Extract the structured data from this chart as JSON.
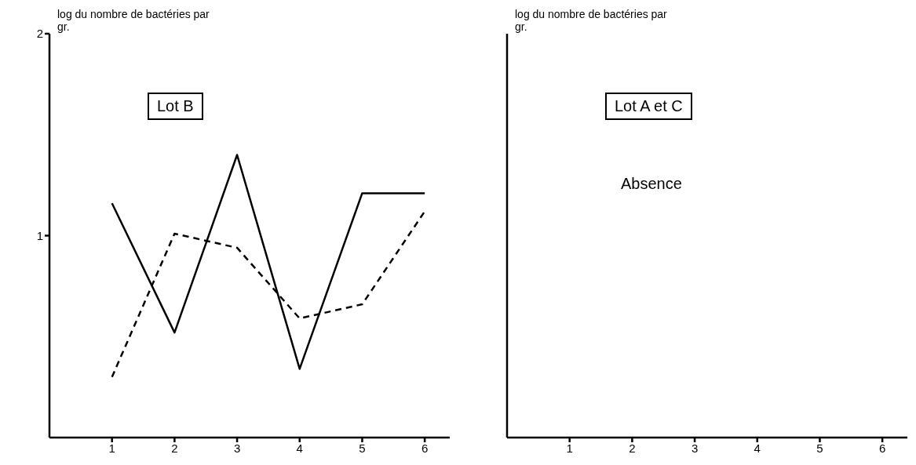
{
  "chart_data": [
    {
      "type": "line",
      "title": "Lot B",
      "ylabel": "log du nombre de bactéries par gr.",
      "x": [
        1,
        2,
        3,
        4,
        5,
        6
      ],
      "xlim": [
        0,
        6.4
      ],
      "xticks": [
        1,
        2,
        3,
        4,
        5,
        6
      ],
      "ylim": [
        0,
        2
      ],
      "yticks": [
        1,
        2
      ],
      "grid": false,
      "legend": false,
      "marker": "none",
      "series": [
        {
          "color": "#000000",
          "line_style": "solid",
          "values": [
            1.16,
            0.52,
            1.4,
            0.34,
            1.21,
            1.21
          ]
        },
        {
          "color": "#000000",
          "line_style": "dashed",
          "values": [
            0.3,
            1.01,
            0.94,
            0.59,
            0.66,
            1.12
          ]
        }
      ]
    },
    {
      "type": "line",
      "title": "Lot A et C",
      "ylabel": "log du nombre de bactéries par gr.",
      "annotations": [
        "Absence"
      ],
      "xlim": [
        0,
        6.4
      ],
      "xticks": [
        1,
        2,
        3,
        4,
        5,
        6
      ],
      "ylim": [
        0,
        2
      ],
      "tick_labels": "x",
      "grid": false,
      "legend": false,
      "marker": "none"
    }
  ]
}
